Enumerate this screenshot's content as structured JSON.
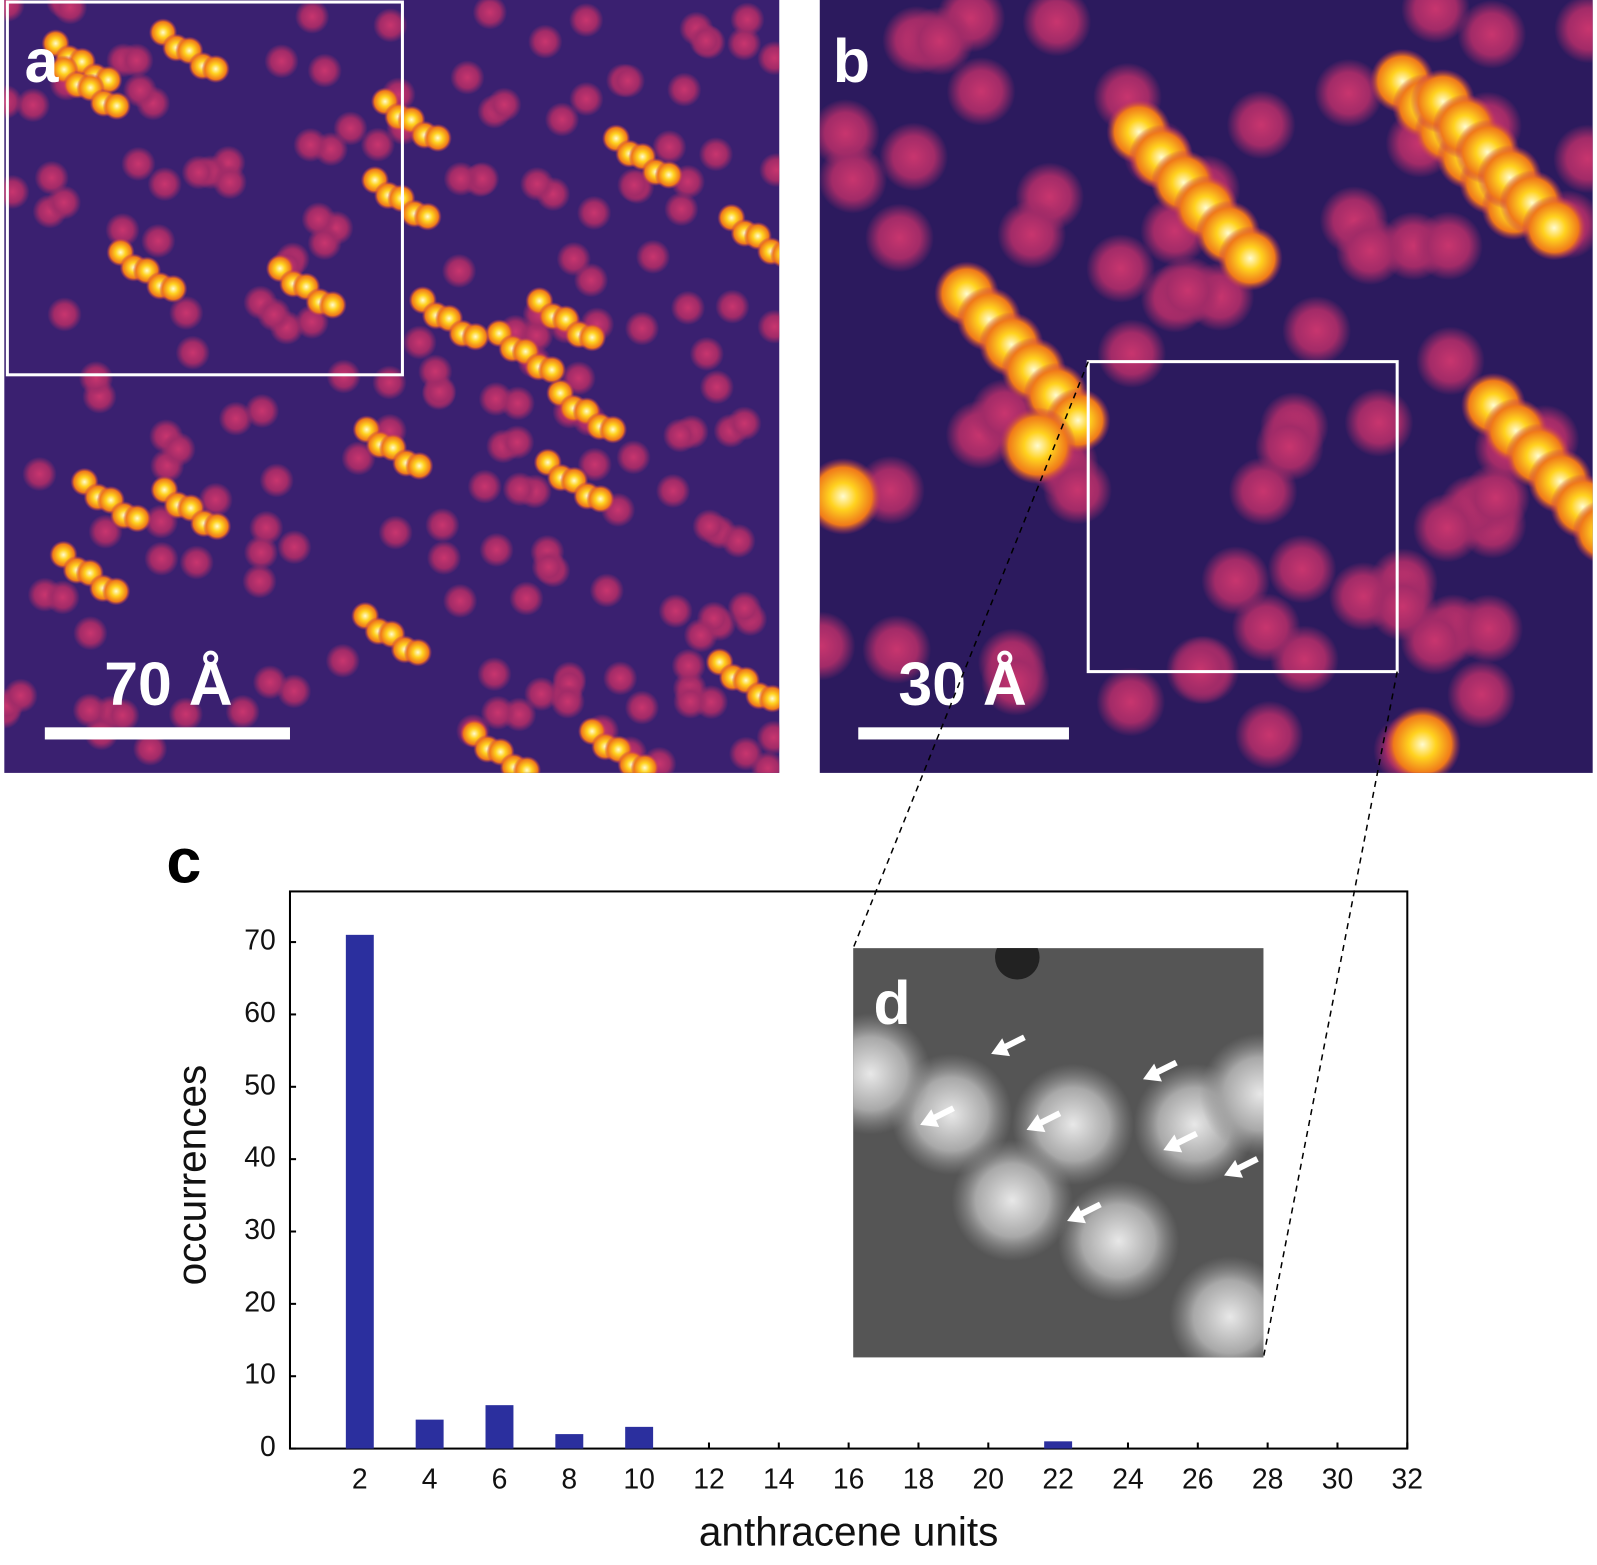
{
  "panels": {
    "a": {
      "label": "a",
      "scale_bar": "70 Å"
    },
    "b": {
      "label": "b",
      "scale_bar": "30 Å"
    },
    "d": {
      "label": "d"
    }
  },
  "chart_data": {
    "type": "bar",
    "panel_label": "c",
    "x_label": "anthracene units",
    "y_label": "occurrences",
    "x": [
      2,
      4,
      6,
      8,
      10,
      22
    ],
    "values": [
      71,
      4,
      6,
      2,
      3,
      1
    ],
    "color": "#2b2f9e",
    "xlim": [
      0,
      32
    ],
    "xticks": [
      2,
      4,
      6,
      8,
      10,
      12,
      14,
      16,
      18,
      20,
      22,
      24,
      26,
      28,
      30,
      32
    ],
    "ylim": [
      0,
      77
    ],
    "yticks": [
      0,
      10,
      20,
      30,
      40,
      50,
      60,
      70
    ]
  }
}
